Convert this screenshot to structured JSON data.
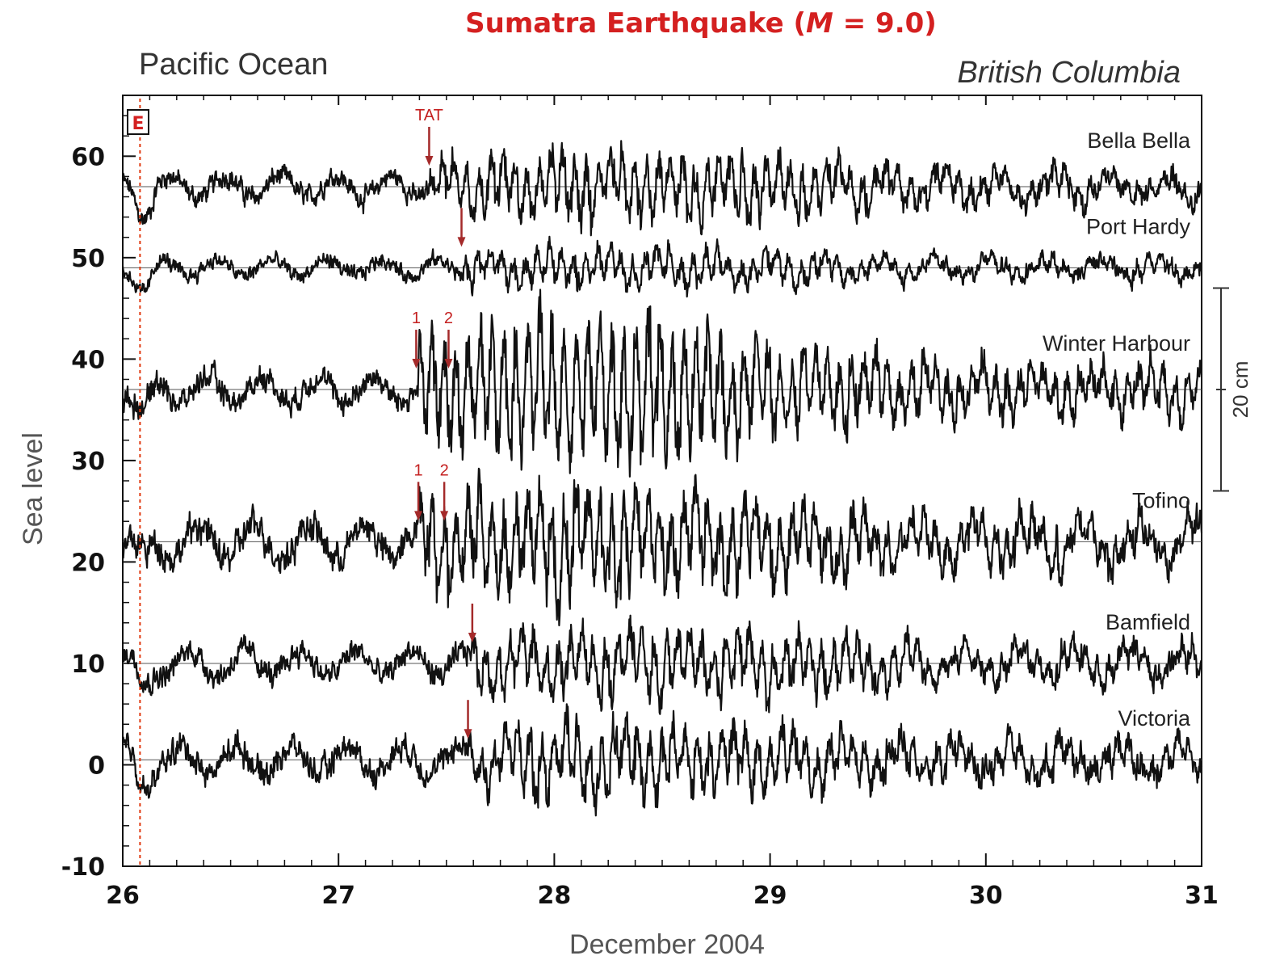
{
  "chart_data": {
    "type": "line",
    "title_prefix": "Sumatra  Earthquake  (",
    "title_m": "M",
    "title_suffix": " = 9.0)",
    "left_region": "Pacific  Ocean",
    "right_region": "British Columbia",
    "xlabel": "December  2004",
    "ylabel": "Sea  level",
    "xlim": [
      26,
      31
    ],
    "ylim": [
      -10,
      66
    ],
    "x_ticks": [
      "26",
      "27",
      "28",
      "29",
      "30",
      "31"
    ],
    "y_ticks": [
      "60",
      "50",
      "40",
      "30",
      "20",
      "10",
      "0",
      "-10"
    ],
    "event_marker": {
      "label": "E",
      "x": 26.08,
      "color": "#e03a10"
    },
    "scale_bar": {
      "label": "20 cm",
      "from": 27,
      "to": 47
    },
    "series": [
      {
        "name": "Bella  Bella",
        "baseline": 57,
        "noise_amp": 1.2,
        "tsunami_amp": 2.6,
        "arrival": 27.42,
        "peak": 28.4
      },
      {
        "name": "Port Hardy",
        "baseline": 49,
        "noise_amp": 0.9,
        "tsunami_amp": 1.4,
        "arrival": 27.58,
        "peak": 28.3
      },
      {
        "name": "Winter Harbour",
        "baseline": 37,
        "noise_amp": 1.4,
        "tsunami_amp": 5.6,
        "arrival": 27.37,
        "peak": 28.15
      },
      {
        "name": "Tofino",
        "baseline": 22,
        "noise_amp": 1.8,
        "tsunami_amp": 4.0,
        "arrival": 27.37,
        "peak": 28.15
      },
      {
        "name": "Bamfield",
        "baseline": 10,
        "noise_amp": 1.4,
        "tsunami_amp": 2.4,
        "arrival": 27.62,
        "peak": 28.6
      },
      {
        "name": "Victoria",
        "baseline": 0.5,
        "noise_amp": 1.5,
        "tsunami_amp": 2.6,
        "arrival": 27.6,
        "peak": 28.4
      }
    ],
    "arrival_arrows": [
      {
        "series": "Bella  Bella",
        "x": 27.42,
        "label": "TAT"
      },
      {
        "series": "Port Hardy",
        "x": 27.57,
        "label": ""
      },
      {
        "series": "Winter Harbour",
        "x": 27.36,
        "label": "1"
      },
      {
        "series": "Winter Harbour",
        "x": 27.51,
        "label": "2"
      },
      {
        "series": "Tofino",
        "x": 27.37,
        "label": "1"
      },
      {
        "series": "Tofino",
        "x": 27.49,
        "label": "2"
      },
      {
        "series": "Bamfield",
        "x": 27.62,
        "label": ""
      },
      {
        "series": "Victoria",
        "x": 27.6,
        "label": ""
      }
    ],
    "colors": {
      "trace": "#111111",
      "arrow": "#a42a2a",
      "title": "#d42020"
    }
  }
}
